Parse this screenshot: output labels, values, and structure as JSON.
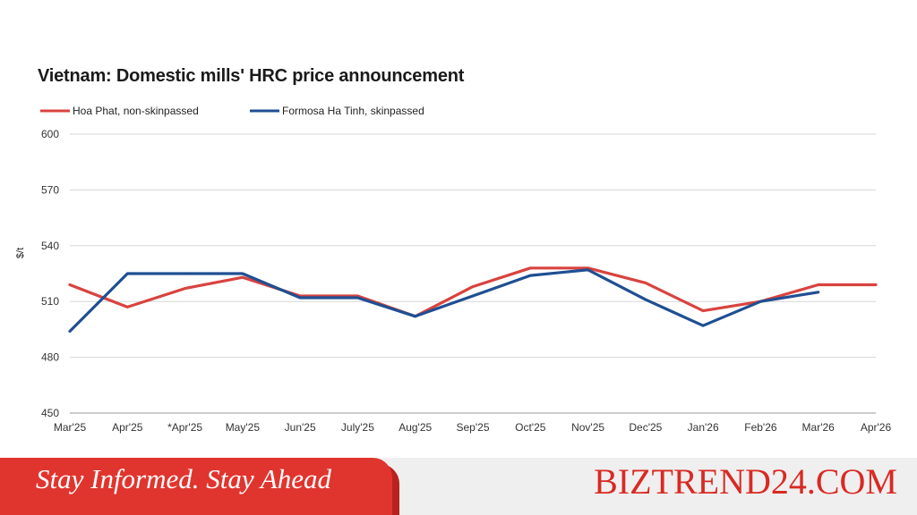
{
  "chart_data": {
    "type": "line",
    "title": "Vietnam: Domestic mills' HRC price announcement",
    "ylabel": "$/t",
    "xlabel": "",
    "ylim": [
      450,
      600
    ],
    "yticks": [
      450,
      480,
      510,
      540,
      570,
      600
    ],
    "grid": true,
    "legend": "top-left",
    "categories": [
      "Mar'25",
      "Apr'25",
      "*Apr'25",
      "May'25",
      "Jun'25",
      "July'25",
      "Aug'25",
      "Sep'25",
      "Oct'25",
      "Nov'25",
      "Dec'25",
      "Jan'26",
      "Feb'26",
      "Mar'26",
      "Apr'26"
    ],
    "series": [
      {
        "name": "Hoa Phat, non-skinpassed",
        "color": "#d9433f",
        "values": [
          519,
          507,
          517,
          523,
          513,
          513,
          502,
          518,
          528,
          528,
          520,
          505,
          510,
          519,
          519
        ]
      },
      {
        "name": "Formosa Ha Tinh, skinpassed",
        "color": "#1f4f93",
        "values": [
          494,
          525,
          525,
          525,
          512,
          512,
          502,
          513,
          524,
          527,
          511,
          497,
          510,
          515,
          null
        ]
      }
    ]
  },
  "banner": {
    "tagline": "Stay Informed. Stay Ahead",
    "brand": "BIZTREND24.COM"
  }
}
